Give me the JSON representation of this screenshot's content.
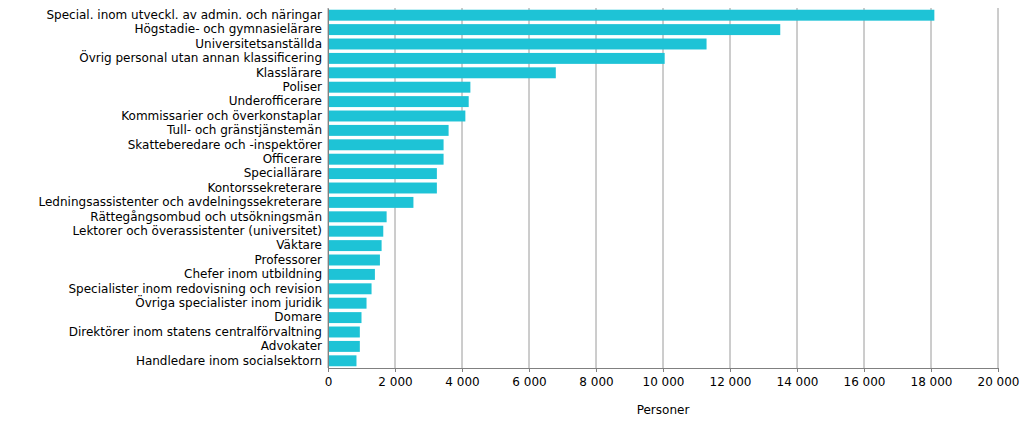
{
  "chart_data": {
    "type": "bar",
    "orientation": "horizontal",
    "categories": [
      "Special. inom utveckl. av admin. och näringar",
      "Högstadie- och gymnasielärare",
      "Universitetsanställda",
      "Övrig personal utan annan klassificering",
      "Klasslärare",
      "Poliser",
      "Underofficerare",
      "Kommissarier och överkonstaplar",
      "Tull- och gränstjänstemän",
      "Skatteberedare och -inspektörer",
      "Officerare",
      "Speciallärare",
      "Kontorssekreterare",
      "Ledningsassistenter och avdelningssekreterare",
      "Rättegångsombud och utsökningsmän",
      "Lektorer och överassistenter (universitet)",
      "Väktare",
      "Professorer",
      "Chefer inom utbildning",
      "Specialister inom redovisning och revision",
      "Övriga specialister inom juridik",
      "Domare",
      "Direktörer inom statens centralförvaltning",
      "Advokater",
      "Handledare inom socialsektorn"
    ],
    "values": [
      18100,
      13500,
      11300,
      10050,
      6800,
      4250,
      4200,
      4100,
      3600,
      3450,
      3450,
      3250,
      3250,
      2550,
      1750,
      1650,
      1600,
      1550,
      1400,
      1300,
      1150,
      1000,
      950,
      950,
      850
    ],
    "color": "#1ec3d6",
    "xlabel": "Personer",
    "xlim": [
      0,
      20000
    ],
    "xticks": [
      0,
      {
        "value": 2000,
        "label": "2 000"
      },
      {
        "value": 4000,
        "label": "4 000"
      },
      {
        "value": 6000,
        "label": "6 000"
      },
      {
        "value": 8000,
        "label": "8 000"
      },
      {
        "value": 10000,
        "label": "10 000"
      },
      {
        "value": 12000,
        "label": "12 000"
      },
      {
        "value": 14000,
        "label": "14 000"
      },
      {
        "value": 16000,
        "label": "16 000"
      },
      {
        "value": 18000,
        "label": "18 000"
      },
      {
        "value": 20000,
        "label": "20 000"
      }
    ],
    "grid": true
  }
}
